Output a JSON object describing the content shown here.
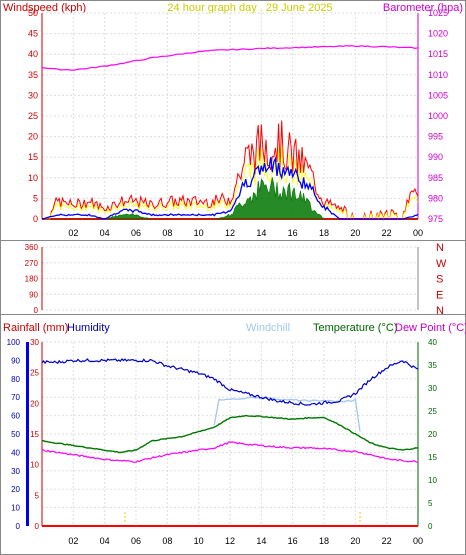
{
  "colors": {
    "wind_gust": "#ff0000",
    "wind_avg": "#0000ff",
    "wind_low": "#007700",
    "wind_yellow": "#ffff00",
    "barometer": "#ff00ff",
    "rain": "#ff0000",
    "humidity": "#0000cc",
    "windchill": "#a0c8f0",
    "temperature": "#007700",
    "dewpoint": "#ff00ff",
    "bearing_labels": "#cc0000",
    "axis_left_red": "#cc0000",
    "axis_right_magenta": "#cc00cc",
    "axis_right_green": "#006600",
    "title_yellow": "#cccc00"
  },
  "header": {
    "left": "Windspeed (kph)",
    "center": "24 hour graph day . 29 June 2025",
    "right": "Barometer (hpa)"
  },
  "lower_header": {
    "rainfall": "Rainfall (mm)",
    "humidity": "Humidity",
    "windchill": "Windchill",
    "temperature": "Temperature (°C)",
    "dewpoint": "Dew Point (°C)"
  },
  "chart_data": [
    {
      "type": "line",
      "title": "24 hour graph day . 29 June 2025",
      "ylabel": "Windspeed (kph)",
      "y2label": "Barometer (hpa)",
      "x_ticks": [
        "02",
        "04",
        "06",
        "08",
        "10",
        "12",
        "14",
        "16",
        "18",
        "20",
        "22",
        "00"
      ],
      "left_ticks": [
        "0",
        "5",
        "10",
        "15",
        "20",
        "25",
        "30",
        "35",
        "40",
        "45",
        "50"
      ],
      "right_ticks": [
        "975",
        "980",
        "985",
        "990",
        "995",
        "1000",
        "1005",
        "1010",
        "1015",
        "1020",
        "1025"
      ],
      "ylim": [
        0,
        50
      ],
      "y2lim": [
        975,
        1025
      ],
      "grid": true,
      "x_hours": [
        0,
        1,
        2,
        3,
        4,
        5,
        6,
        7,
        8,
        9,
        10,
        11,
        12,
        13,
        14,
        15,
        16,
        17,
        18,
        19,
        20,
        21,
        22,
        23,
        24
      ],
      "series": [
        {
          "name": "Barometer (hpa)",
          "axis": "right",
          "values": [
            1011.8,
            1011.3,
            1011.2,
            1011.6,
            1012.1,
            1012.7,
            1013.4,
            1014.1,
            1014.6,
            1015.1,
            1015.6,
            1015.9,
            1016.1,
            1016.2,
            1016.4,
            1016.5,
            1016.6,
            1016.7,
            1016.8,
            1016.9,
            1017.0,
            1016.9,
            1016.8,
            1016.6,
            1016.5
          ]
        },
        {
          "name": "Windspeed (kph)",
          "axis": "left",
          "gust": [
            0,
            5,
            4,
            5,
            3,
            5,
            5,
            4,
            5,
            5,
            5,
            5,
            6,
            17,
            21,
            22,
            18,
            14,
            5,
            3,
            2,
            2,
            2,
            2,
            9
          ],
          "avg": [
            0,
            1,
            1,
            1,
            0,
            2,
            2,
            1,
            1,
            1,
            1,
            1,
            2,
            9,
            12,
            13,
            11,
            8,
            3,
            0,
            0,
            0,
            0,
            0,
            1
          ],
          "low": [
            0,
            0,
            0,
            0,
            0,
            1,
            1,
            0,
            0,
            0,
            0,
            0,
            1,
            5,
            8,
            8,
            7,
            4,
            0,
            0,
            0,
            0,
            0,
            0,
            0
          ]
        }
      ]
    },
    {
      "type": "scatter",
      "ylabel": "Wind direction",
      "y_ticks": [
        "360",
        "270",
        "180",
        "90",
        "0"
      ],
      "right_labels": [
        "N",
        "W",
        "S",
        "E",
        "N"
      ],
      "ylim": [
        0,
        360
      ],
      "x_ticks": [],
      "series": []
    },
    {
      "type": "line",
      "xlabel": "",
      "x_ticks": [
        "02",
        "04",
        "06",
        "08",
        "10",
        "12",
        "14",
        "16",
        "18",
        "20",
        "22",
        "00"
      ],
      "humidity_ticks": [
        "0",
        "10",
        "20",
        "30",
        "40",
        "50",
        "60",
        "70",
        "80",
        "90",
        "100"
      ],
      "rain_ticks": [
        "0",
        "5",
        "10",
        "15",
        "20",
        "25",
        "30"
      ],
      "temp_ticks": [
        "0",
        "5",
        "10",
        "15",
        "20",
        "25",
        "30",
        "35",
        "40"
      ],
      "rain_ylim": [
        0,
        30
      ],
      "humidity_ylim": [
        0,
        100
      ],
      "temp_ylim": [
        0,
        40
      ],
      "grid": true,
      "x_hours": [
        0,
        1,
        2,
        3,
        4,
        5,
        6,
        7,
        8,
        9,
        10,
        11,
        12,
        13,
        14,
        15,
        16,
        17,
        18,
        19,
        20,
        21,
        22,
        23,
        24
      ],
      "series": [
        {
          "name": "Humidity",
          "axis": "humidity",
          "values": [
            89,
            89,
            90,
            90,
            90,
            90,
            90,
            90,
            87,
            85,
            83,
            80,
            74,
            72,
            70,
            68,
            67,
            66,
            67,
            68,
            72,
            80,
            86,
            90,
            85
          ]
        },
        {
          "name": "Windchill",
          "axis": "temp",
          "values": [
            null,
            null,
            null,
            null,
            null,
            null,
            null,
            null,
            null,
            null,
            null,
            null,
            27.5,
            27.8,
            28.0,
            27.6,
            27.4,
            27.2,
            27.3,
            27.0,
            null,
            null,
            null,
            null,
            null
          ]
        },
        {
          "name": "Temperature (°C)",
          "axis": "temp",
          "values": [
            18.5,
            18.0,
            17.5,
            17.0,
            16.5,
            16.0,
            16.5,
            18.5,
            19.0,
            19.5,
            20.5,
            21.5,
            23.5,
            24.0,
            23.8,
            23.5,
            23.2,
            23.5,
            23.6,
            22.0,
            20.0,
            18.0,
            17.0,
            16.5,
            17.0
          ]
        },
        {
          "name": "Dew Point (°C)",
          "axis": "temp",
          "values": [
            16.5,
            16.0,
            15.5,
            15.0,
            14.5,
            14.2,
            14.0,
            14.8,
            15.5,
            16.0,
            16.5,
            17.0,
            18.2,
            17.8,
            17.5,
            17.2,
            17.0,
            17.0,
            16.8,
            16.5,
            16.2,
            15.5,
            14.6,
            14.2,
            14.0
          ]
        },
        {
          "name": "Rainfall (mm)",
          "axis": "rain",
          "values": [
            0,
            0,
            0,
            0,
            0,
            0,
            0,
            0,
            0,
            0,
            0,
            0,
            0,
            0,
            0,
            0,
            0,
            0,
            0,
            0,
            0,
            0,
            0,
            0,
            0
          ]
        }
      ]
    }
  ]
}
